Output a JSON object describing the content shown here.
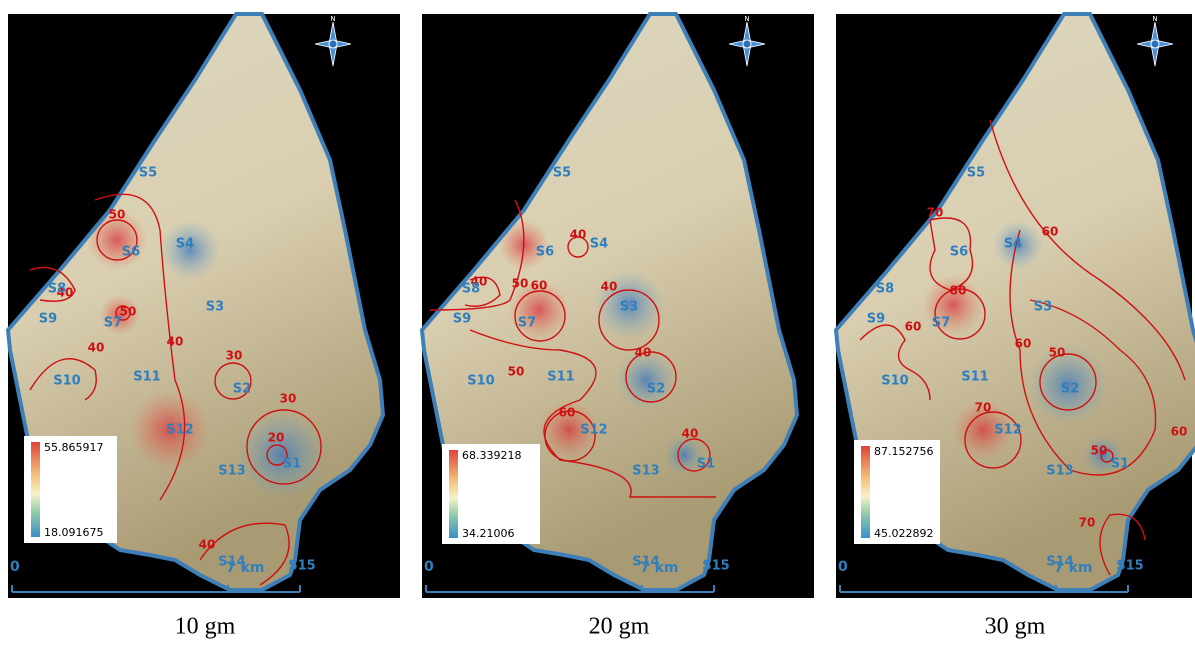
{
  "panels": [
    {
      "caption": "10 gm",
      "legend": {
        "max": 55.865917,
        "min": 18.091675
      },
      "compass": "N",
      "scale": {
        "start": "0",
        "end": "7 km"
      },
      "stations": [
        "S1",
        "S2",
        "S3",
        "S4",
        "S5",
        "S6",
        "S7",
        "S8",
        "S9",
        "S10",
        "S11",
        "S12",
        "S13",
        "S14",
        "S15"
      ],
      "contour_labels": [
        50,
        40,
        50,
        40,
        40,
        30,
        30,
        20,
        40
      ]
    },
    {
      "caption": "20 gm",
      "legend": {
        "max": 68.339218,
        "min": 34.21006
      },
      "compass": "N",
      "scale": {
        "start": "0",
        "end": "7 km"
      },
      "stations": [
        "S1",
        "S2",
        "S3",
        "S4",
        "S5",
        "S6",
        "S7",
        "S8",
        "S9",
        "S10",
        "S11",
        "S12",
        "S13",
        "S14",
        "S15"
      ],
      "contour_labels": [
        40,
        40,
        50,
        60,
        40,
        40,
        50,
        60,
        40
      ]
    },
    {
      "caption": "30 gm",
      "legend": {
        "max": 87.152756,
        "min": 45.022892
      },
      "compass": "N",
      "scale": {
        "start": "0",
        "end": "7 km"
      },
      "stations": [
        "S1",
        "S2",
        "S3",
        "S4",
        "S5",
        "S6",
        "S7",
        "S8",
        "S9",
        "S10",
        "S11",
        "S12",
        "S13",
        "S14",
        "S15"
      ],
      "contour_labels": [
        70,
        60,
        80,
        60,
        60,
        50,
        70,
        50,
        60,
        70
      ]
    }
  ]
}
